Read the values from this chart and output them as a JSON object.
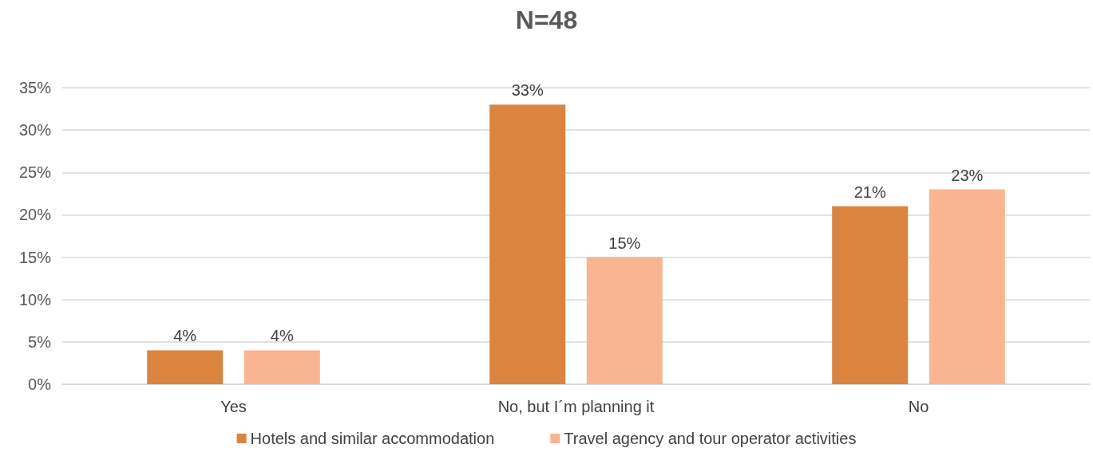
{
  "chart_data": {
    "type": "bar",
    "title": "N=48",
    "categories": [
      "Yes",
      "No, but I´m planning it",
      "No"
    ],
    "series": [
      {
        "name": "Hotels and similar accommodation",
        "color": "#da8440",
        "values": [
          4,
          33,
          21
        ],
        "value_labels": [
          "4%",
          "33%",
          "21%"
        ]
      },
      {
        "name": "Travel agency and tour operator activities",
        "color": "#f8b590",
        "values": [
          4,
          15,
          23
        ],
        "value_labels": [
          "4%",
          "15%",
          "23%"
        ]
      }
    ],
    "ylim": [
      0,
      35
    ],
    "yticks": [
      {
        "value": 0,
        "label": "0%"
      },
      {
        "value": 5,
        "label": "5%"
      },
      {
        "value": 10,
        "label": "10%"
      },
      {
        "value": 15,
        "label": "15%"
      },
      {
        "value": 20,
        "label": "20%"
      },
      {
        "value": 25,
        "label": "25%"
      },
      {
        "value": 30,
        "label": "30%"
      },
      {
        "value": 35,
        "label": "35%"
      }
    ],
    "grid": "y",
    "legend": "bottom"
  }
}
